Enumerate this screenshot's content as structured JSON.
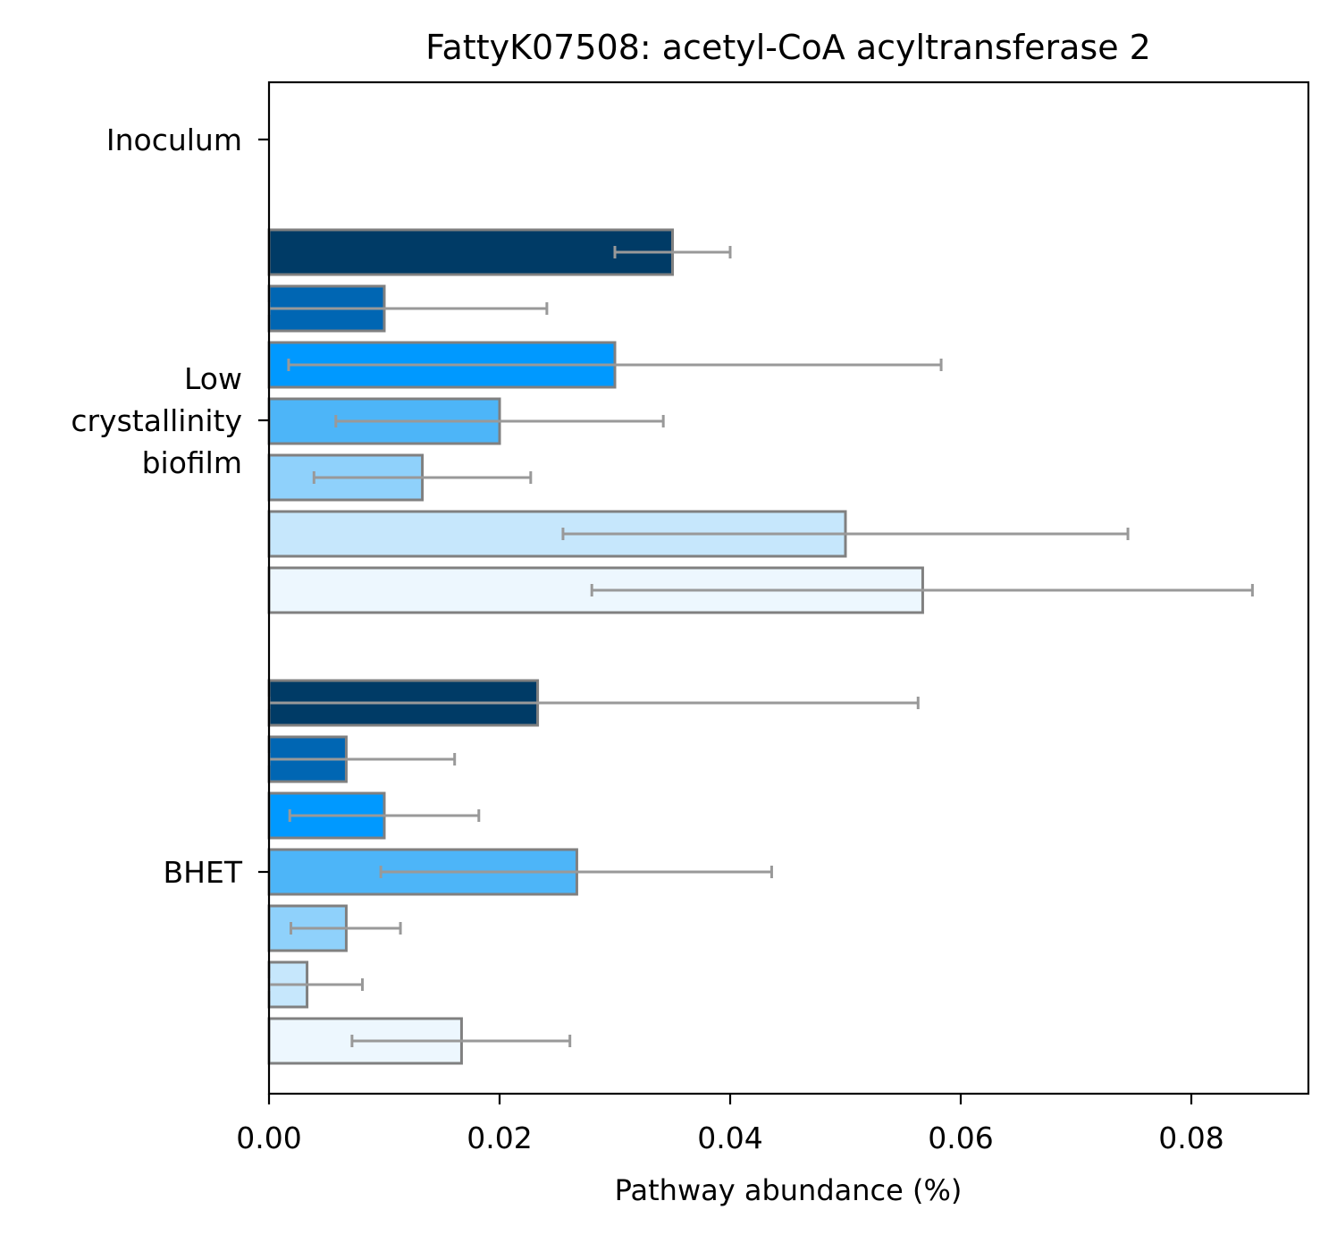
{
  "chart_data": {
    "type": "bar",
    "orientation": "horizontal",
    "title": "FattyK07508: acetyl-CoA acyltransferase 2",
    "xlabel": "Pathway abundance (%)",
    "ylabel": "",
    "xlim": [
      0,
      0.09
    ],
    "xticks": [
      "0.00",
      "0.02",
      "0.04",
      "0.06",
      "0.08"
    ],
    "xtick_values": [
      0,
      0.02,
      0.04,
      0.06,
      0.08
    ],
    "categories": [
      {
        "label_lines": [
          "Inoculum"
        ]
      },
      {
        "label_lines": [
          "Low",
          "crystallinity",
          "biofilm"
        ]
      },
      {
        "label_lines": [
          "BHET"
        ]
      }
    ],
    "bar_colors": [
      "#003b66",
      "#0066b3",
      "#0099ff",
      "#4db5f8",
      "#8fd1fb",
      "#c6e7fc",
      "#edf7fe"
    ],
    "bar_edge_color": "#808080",
    "errorbar_color": "#999999",
    "grid": false,
    "legend": "none",
    "groups": [
      {
        "category_index": 0,
        "bars": []
      },
      {
        "category_index": 1,
        "bars": [
          {
            "value": 0.035,
            "err_low": 0.03,
            "err_high": 0.04
          },
          {
            "value": 0.01,
            "err_low": 0.0,
            "err_high": 0.0241
          },
          {
            "value": 0.03,
            "err_low": 0.0017,
            "err_high": 0.0583
          },
          {
            "value": 0.02,
            "err_low": 0.0058,
            "err_high": 0.0342
          },
          {
            "value": 0.0133,
            "err_low": 0.0039,
            "err_high": 0.0227
          },
          {
            "value": 0.05,
            "err_low": 0.0255,
            "err_high": 0.0745
          },
          {
            "value": 0.0567,
            "err_low": 0.028,
            "err_high": 0.0853
          }
        ]
      },
      {
        "category_index": 2,
        "bars": [
          {
            "value": 0.0233,
            "err_low": 0.0,
            "err_high": 0.0563
          },
          {
            "value": 0.0067,
            "err_low": 0.0,
            "err_high": 0.0161
          },
          {
            "value": 0.01,
            "err_low": 0.0018,
            "err_high": 0.0182
          },
          {
            "value": 0.0267,
            "err_low": 0.0097,
            "err_high": 0.0436
          },
          {
            "value": 0.0067,
            "err_low": 0.0019,
            "err_high": 0.0114
          },
          {
            "value": 0.0033,
            "err_low": 0.0,
            "err_high": 0.0081
          },
          {
            "value": 0.0167,
            "err_low": 0.0072,
            "err_high": 0.0261
          }
        ]
      }
    ]
  }
}
